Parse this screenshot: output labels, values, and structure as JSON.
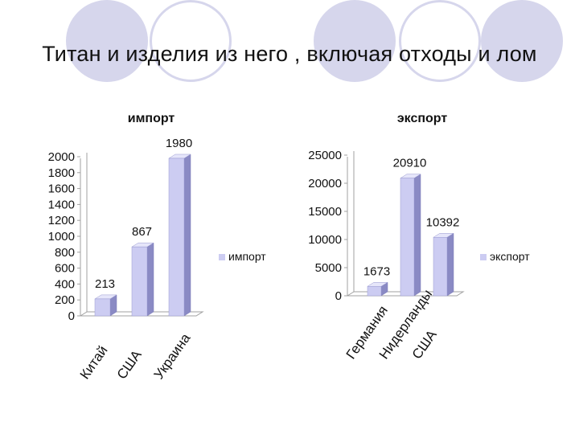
{
  "slide": {
    "title": "Титан и изделия из него , включая отходы и лом",
    "decor_color": "#d6d6ec"
  },
  "chart_data": [
    {
      "type": "bar",
      "title": "импорт",
      "categories": [
        "Китай",
        "США",
        "Украина"
      ],
      "series": [
        {
          "name": "импорт",
          "values": [
            213,
            867,
            1980
          ]
        }
      ],
      "ylim": [
        0,
        2000
      ],
      "yticks": [
        0,
        200,
        400,
        600,
        800,
        1000,
        1200,
        1400,
        1600,
        1800,
        2000
      ],
      "data_labels": [
        "213",
        "867",
        "1980"
      ],
      "legend_position": "right",
      "grid": false,
      "bar_color": "#ccccf2"
    },
    {
      "type": "bar",
      "title": "экспорт",
      "categories": [
        "Германия",
        "Нидерланды",
        "США"
      ],
      "series": [
        {
          "name": "экспорт",
          "values": [
            1673,
            20910,
            10392
          ]
        }
      ],
      "ylim": [
        0,
        25000
      ],
      "yticks": [
        0,
        5000,
        10000,
        15000,
        20000,
        25000
      ],
      "data_labels": [
        "1673",
        "20910",
        "10392"
      ],
      "legend_position": "right",
      "grid": false,
      "bar_color": "#ccccf2"
    }
  ]
}
